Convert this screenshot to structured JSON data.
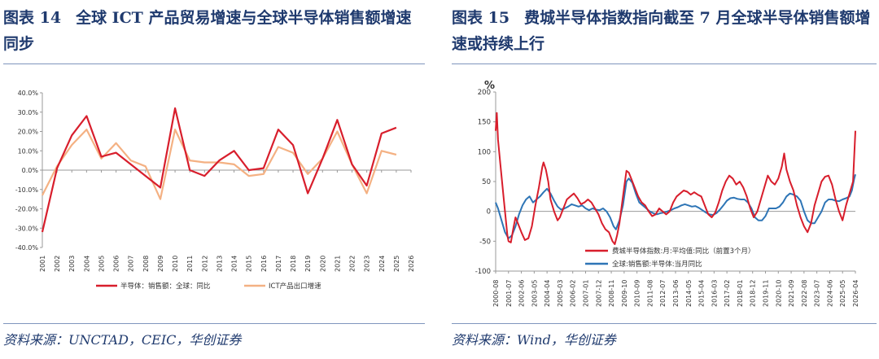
{
  "left": {
    "title_num": "图表 14",
    "title_text": "全球 ICT 产品贸易增速与全球半导体销售额增速同步",
    "source": "资料来源：UNCTAD，CEIC，华创证券"
  },
  "right": {
    "title_num": "图表 15",
    "title_text": "费城半导体指数指向截至 7 月全球半导体销售额增速或持续上行",
    "source": "资料来源：Wind，华创证券"
  },
  "colors": {
    "red": "#d81e2c",
    "orange": "#f4b183",
    "blue": "#2e75b6",
    "title": "#1f3a6e"
  },
  "chart_data": [
    {
      "type": "line",
      "title": "",
      "xlabel": "",
      "ylabel": "",
      "ylim": [
        -40,
        40
      ],
      "yticks": [
        "-40.0%",
        "-30.0%",
        "-20.0%",
        "-10.0%",
        "0.0%",
        "10.0%",
        "20.0%",
        "30.0%",
        "40.0%"
      ],
      "yticks_values": [
        -40,
        -30,
        -20,
        -10,
        0,
        10,
        20,
        30,
        40
      ],
      "categories": [
        "2001",
        "2002",
        "2003",
        "2004",
        "2005",
        "2006",
        "2007",
        "2008",
        "2009",
        "2010",
        "2011",
        "2012",
        "2013",
        "2014",
        "2015",
        "2016",
        "2017",
        "2018",
        "2019",
        "2020",
        "2021",
        "2022",
        "2023",
        "2024",
        "2025",
        "2026"
      ],
      "legend_position": "bottom",
      "series": [
        {
          "name": "半导体：销售额：全球：同比",
          "color": "#d81e2c",
          "values": [
            -32,
            1,
            18,
            28,
            7,
            9,
            3,
            -3,
            -9,
            32,
            0,
            -3,
            5,
            10,
            0,
            1,
            21,
            13,
            -12,
            6,
            26,
            3,
            -8,
            19,
            22,
            null
          ]
        },
        {
          "name": "ICT产品出口增速",
          "color": "#f4b183",
          "values": [
            -13,
            2,
            13,
            21,
            6,
            14,
            5,
            2,
            -15,
            21,
            5,
            4,
            4,
            3,
            -3,
            -2,
            12,
            9,
            -2,
            6,
            20,
            3,
            -12,
            10,
            8,
            null
          ]
        }
      ]
    },
    {
      "type": "line",
      "title": "",
      "ylabel": "%",
      "ylim": [
        -100,
        200
      ],
      "yticks": [
        "-100",
        "-50",
        "0",
        "50",
        "100",
        "150",
        "200"
      ],
      "yticks_values": [
        -100,
        -50,
        0,
        50,
        100,
        150,
        200
      ],
      "x_start": "2000-08",
      "x_end": "2026-04",
      "xticks": [
        "2000-08",
        "2001-07",
        "2002-06",
        "2003-05",
        "2004-04",
        "2005-03",
        "2006-02",
        "2007-01",
        "2007-12",
        "2008-11",
        "2009-10",
        "2010-09",
        "2011-08",
        "2012-07",
        "2013-06",
        "2014-05",
        "2015-04",
        "2016-03",
        "2017-02",
        "2018-01",
        "2018-12",
        "2019-11",
        "2020-10",
        "2021-09",
        "2022-08",
        "2023-07",
        "2024-06",
        "2025-05",
        "2026-04"
      ],
      "legend_position": "bottom-center",
      "series": [
        {
          "name": "费城半导体指数:月:平均值:同比（前置3个月）",
          "color": "#d81e2c",
          "points": [
            [
              "2000-08",
              135
            ],
            [
              "2000-09",
              165
            ],
            [
              "2000-10",
              120
            ],
            [
              "2000-12",
              80
            ],
            [
              "2001-03",
              20
            ],
            [
              "2001-06",
              -40
            ],
            [
              "2001-07",
              -50
            ],
            [
              "2001-09",
              -52
            ],
            [
              "2001-11",
              -30
            ],
            [
              "2002-01",
              -10
            ],
            [
              "2002-03",
              -20
            ],
            [
              "2002-06",
              -35
            ],
            [
              "2002-09",
              -48
            ],
            [
              "2002-12",
              -45
            ],
            [
              "2003-03",
              -25
            ],
            [
              "2003-06",
              10
            ],
            [
              "2003-09",
              40
            ],
            [
              "2003-12",
              75
            ],
            [
              "2004-01",
              82
            ],
            [
              "2004-03",
              70
            ],
            [
              "2004-05",
              50
            ],
            [
              "2004-07",
              20
            ],
            [
              "2004-10",
              0
            ],
            [
              "2005-01",
              -15
            ],
            [
              "2005-03",
              -10
            ],
            [
              "2005-06",
              5
            ],
            [
              "2005-09",
              20
            ],
            [
              "2005-12",
              25
            ],
            [
              "2006-03",
              30
            ],
            [
              "2006-06",
              22
            ],
            [
              "2006-09",
              12
            ],
            [
              "2006-12",
              15
            ],
            [
              "2007-03",
              20
            ],
            [
              "2007-06",
              15
            ],
            [
              "2007-09",
              5
            ],
            [
              "2007-12",
              -5
            ],
            [
              "2008-03",
              -20
            ],
            [
              "2008-06",
              -30
            ],
            [
              "2008-09",
              -35
            ],
            [
              "2008-12",
              -50
            ],
            [
              "2009-02",
              -55
            ],
            [
              "2009-04",
              -40
            ],
            [
              "2009-06",
              -20
            ],
            [
              "2009-08",
              10
            ],
            [
              "2009-10",
              40
            ],
            [
              "2009-12",
              68
            ],
            [
              "2010-02",
              65
            ],
            [
              "2010-04",
              55
            ],
            [
              "2010-07",
              40
            ],
            [
              "2010-10",
              25
            ],
            [
              "2011-01",
              15
            ],
            [
              "2011-04",
              10
            ],
            [
              "2011-07",
              0
            ],
            [
              "2011-10",
              -8
            ],
            [
              "2012-01",
              -5
            ],
            [
              "2012-04",
              5
            ],
            [
              "2012-07",
              0
            ],
            [
              "2012-10",
              -5
            ],
            [
              "2013-01",
              0
            ],
            [
              "2013-04",
              15
            ],
            [
              "2013-07",
              25
            ],
            [
              "2013-10",
              30
            ],
            [
              "2014-01",
              35
            ],
            [
              "2014-04",
              33
            ],
            [
              "2014-07",
              28
            ],
            [
              "2014-10",
              32
            ],
            [
              "2015-01",
              28
            ],
            [
              "2015-04",
              25
            ],
            [
              "2015-07",
              10
            ],
            [
              "2015-10",
              -5
            ],
            [
              "2016-01",
              -10
            ],
            [
              "2016-04",
              -2
            ],
            [
              "2016-07",
              15
            ],
            [
              "2016-10",
              35
            ],
            [
              "2017-01",
              50
            ],
            [
              "2017-04",
              60
            ],
            [
              "2017-07",
              55
            ],
            [
              "2017-10",
              45
            ],
            [
              "2018-01",
              50
            ],
            [
              "2018-04",
              40
            ],
            [
              "2018-07",
              25
            ],
            [
              "2018-10",
              5
            ],
            [
              "2019-01",
              -10
            ],
            [
              "2019-04",
              0
            ],
            [
              "2019-07",
              20
            ],
            [
              "2019-10",
              40
            ],
            [
              "2020-01",
              60
            ],
            [
              "2020-04",
              50
            ],
            [
              "2020-07",
              45
            ],
            [
              "2020-10",
              55
            ],
            [
              "2021-01",
              75
            ],
            [
              "2021-03",
              97
            ],
            [
              "2021-05",
              70
            ],
            [
              "2021-08",
              50
            ],
            [
              "2021-11",
              35
            ],
            [
              "2022-02",
              10
            ],
            [
              "2022-05",
              -10
            ],
            [
              "2022-08",
              -25
            ],
            [
              "2022-11",
              -35
            ],
            [
              "2023-02",
              -20
            ],
            [
              "2023-05",
              10
            ],
            [
              "2023-08",
              30
            ],
            [
              "2023-11",
              50
            ],
            [
              "2024-02",
              58
            ],
            [
              "2024-05",
              60
            ],
            [
              "2024-08",
              45
            ],
            [
              "2024-11",
              20
            ],
            [
              "2025-02",
              0
            ],
            [
              "2025-05",
              -15
            ],
            [
              "2025-08",
              10
            ],
            [
              "2025-11",
              30
            ],
            [
              "2026-02",
              50
            ],
            [
              "2026-04",
              135
            ]
          ]
        },
        {
          "name": "全球:销售额:半导体:当月同比",
          "color": "#2e75b6",
          "points": [
            [
              "2000-08",
              15
            ],
            [
              "2000-10",
              5
            ],
            [
              "2001-01",
              -15
            ],
            [
              "2001-04",
              -35
            ],
            [
              "2001-07",
              -45
            ],
            [
              "2001-10",
              -40
            ],
            [
              "2002-01",
              -25
            ],
            [
              "2002-04",
              -5
            ],
            [
              "2002-07",
              10
            ],
            [
              "2002-10",
              20
            ],
            [
              "2003-01",
              25
            ],
            [
              "2003-04",
              15
            ],
            [
              "2003-07",
              20
            ],
            [
              "2003-10",
              25
            ],
            [
              "2004-01",
              32
            ],
            [
              "2004-04",
              38
            ],
            [
              "2004-07",
              30
            ],
            [
              "2004-10",
              18
            ],
            [
              "2005-01",
              8
            ],
            [
              "2005-04",
              3
            ],
            [
              "2005-07",
              5
            ],
            [
              "2005-10",
              8
            ],
            [
              "2006-01",
              12
            ],
            [
              "2006-04",
              10
            ],
            [
              "2006-07",
              8
            ],
            [
              "2006-10",
              10
            ],
            [
              "2007-01",
              5
            ],
            [
              "2007-04",
              2
            ],
            [
              "2007-07",
              5
            ],
            [
              "2007-10",
              3
            ],
            [
              "2008-01",
              2
            ],
            [
              "2008-04",
              5
            ],
            [
              "2008-07",
              0
            ],
            [
              "2008-10",
              -10
            ],
            [
              "2009-01",
              -25
            ],
            [
              "2009-03",
              -30
            ],
            [
              "2009-06",
              -15
            ],
            [
              "2009-09",
              10
            ],
            [
              "2009-12",
              50
            ],
            [
              "2010-02",
              55
            ],
            [
              "2010-05",
              48
            ],
            [
              "2010-08",
              30
            ],
            [
              "2010-11",
              15
            ],
            [
              "2011-02",
              10
            ],
            [
              "2011-05",
              5
            ],
            [
              "2011-08",
              0
            ],
            [
              "2011-11",
              -3
            ],
            [
              "2012-02",
              -5
            ],
            [
              "2012-05",
              -3
            ],
            [
              "2012-08",
              -2
            ],
            [
              "2012-11",
              0
            ],
            [
              "2013-02",
              2
            ],
            [
              "2013-05",
              5
            ],
            [
              "2013-08",
              7
            ],
            [
              "2013-11",
              10
            ],
            [
              "2014-02",
              12
            ],
            [
              "2014-05",
              10
            ],
            [
              "2014-08",
              8
            ],
            [
              "2014-11",
              9
            ],
            [
              "2015-02",
              6
            ],
            [
              "2015-05",
              2
            ],
            [
              "2015-08",
              -2
            ],
            [
              "2015-11",
              -5
            ],
            [
              "2016-02",
              -6
            ],
            [
              "2016-05",
              -3
            ],
            [
              "2016-08",
              3
            ],
            [
              "2016-11",
              10
            ],
            [
              "2017-02",
              18
            ],
            [
              "2017-05",
              22
            ],
            [
              "2017-08",
              23
            ],
            [
              "2017-11",
              21
            ],
            [
              "2018-02",
              20
            ],
            [
              "2018-05",
              20
            ],
            [
              "2018-08",
              15
            ],
            [
              "2018-11",
              5
            ],
            [
              "2019-02",
              -10
            ],
            [
              "2019-05",
              -15
            ],
            [
              "2019-08",
              -15
            ],
            [
              "2019-11",
              -8
            ],
            [
              "2020-02",
              5
            ],
            [
              "2020-05",
              5
            ],
            [
              "2020-08",
              5
            ],
            [
              "2020-11",
              8
            ],
            [
              "2021-02",
              15
            ],
            [
              "2021-05",
              25
            ],
            [
              "2021-08",
              30
            ],
            [
              "2021-11",
              28
            ],
            [
              "2022-02",
              25
            ],
            [
              "2022-05",
              18
            ],
            [
              "2022-08",
              0
            ],
            [
              "2022-11",
              -15
            ],
            [
              "2023-02",
              -20
            ],
            [
              "2023-05",
              -20
            ],
            [
              "2023-08",
              -10
            ],
            [
              "2023-11",
              0
            ],
            [
              "2024-02",
              15
            ],
            [
              "2024-05",
              20
            ],
            [
              "2024-08",
              20
            ],
            [
              "2024-11",
              18
            ],
            [
              "2025-02",
              17
            ],
            [
              "2025-05",
              20
            ],
            [
              "2025-08",
              22
            ],
            [
              "2025-11",
              25
            ],
            [
              "2026-01",
              35
            ],
            [
              "2026-03",
              55
            ],
            [
              "2026-04",
              62
            ]
          ]
        }
      ]
    }
  ]
}
